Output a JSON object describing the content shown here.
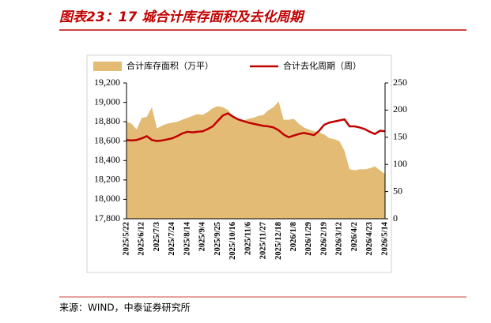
{
  "chart_data": {
    "type": "area-line",
    "title": "图表23：17 城合计库存面积及去化周期",
    "source": "来源：WIND，中泰证券研究所",
    "categories": [
      "2025/5/22",
      null,
      null,
      "2025/6/12",
      null,
      null,
      "2025/7/3",
      null,
      null,
      "2025/7/24",
      null,
      null,
      "2025/8/14",
      null,
      null,
      "2025/9/4",
      null,
      null,
      "2025/9/25",
      null,
      null,
      "2025/10/16",
      null,
      null,
      "2025/11/6",
      null,
      null,
      "2025/11/27",
      null,
      null,
      "2025/12/18",
      null,
      null,
      "2026/1/8",
      null,
      null,
      "2026/1/29",
      null,
      null,
      "2026/2/19",
      null,
      null,
      "2026/3/12",
      null,
      null,
      "2026/4/2",
      null,
      null,
      "2026/4/23",
      null,
      null,
      "2026/5/14"
    ],
    "series": [
      {
        "name": "合计库存面积（万平）",
        "type": "area",
        "color": "#e3bb74",
        "values": [
          18800,
          18780,
          18720,
          18840,
          18850,
          18950,
          18730,
          18760,
          18780,
          18790,
          18800,
          18820,
          18840,
          18860,
          18880,
          18870,
          18900,
          18940,
          18960,
          18950,
          18920,
          18860,
          18830,
          18810,
          18830,
          18840,
          18860,
          18870,
          18920,
          18950,
          19010,
          18820,
          18820,
          18830,
          18780,
          18740,
          18720,
          18700,
          18690,
          18670,
          18630,
          18620,
          18600,
          18500,
          18310,
          18300,
          18310,
          18310,
          18320,
          18340,
          18300,
          18260
        ]
      },
      {
        "name": "合计去化周期（周）",
        "type": "line",
        "axis": "y2",
        "color": "#c00000",
        "values": [
          145,
          144,
          145,
          148,
          152,
          145,
          143,
          144,
          146,
          148,
          152,
          157,
          160,
          159,
          160,
          161,
          165,
          170,
          180,
          190,
          194,
          188,
          183,
          180,
          177,
          175,
          173,
          171,
          170,
          168,
          163,
          155,
          150,
          153,
          156,
          158,
          156,
          154,
          162,
          173,
          177,
          179,
          181,
          183,
          170,
          170,
          168,
          165,
          160,
          156,
          162,
          161
        ]
      }
    ],
    "ylim": [
      17800,
      19200
    ],
    "yticks": [
      {
        "value": 17800,
        "label": "17,800"
      },
      {
        "value": 18000,
        "label": "18,000"
      },
      {
        "value": 18200,
        "label": "18,200"
      },
      {
        "value": 18400,
        "label": "18,400"
      },
      {
        "value": 18600,
        "label": "18,600"
      },
      {
        "value": 18800,
        "label": "18,800"
      },
      {
        "value": 19000,
        "label": "19,000"
      },
      {
        "value": 19200,
        "label": "19,200"
      }
    ],
    "y2lim": [
      0,
      250
    ],
    "y2ticks": [
      0,
      50,
      100,
      150,
      200,
      250
    ],
    "legend": "top"
  }
}
